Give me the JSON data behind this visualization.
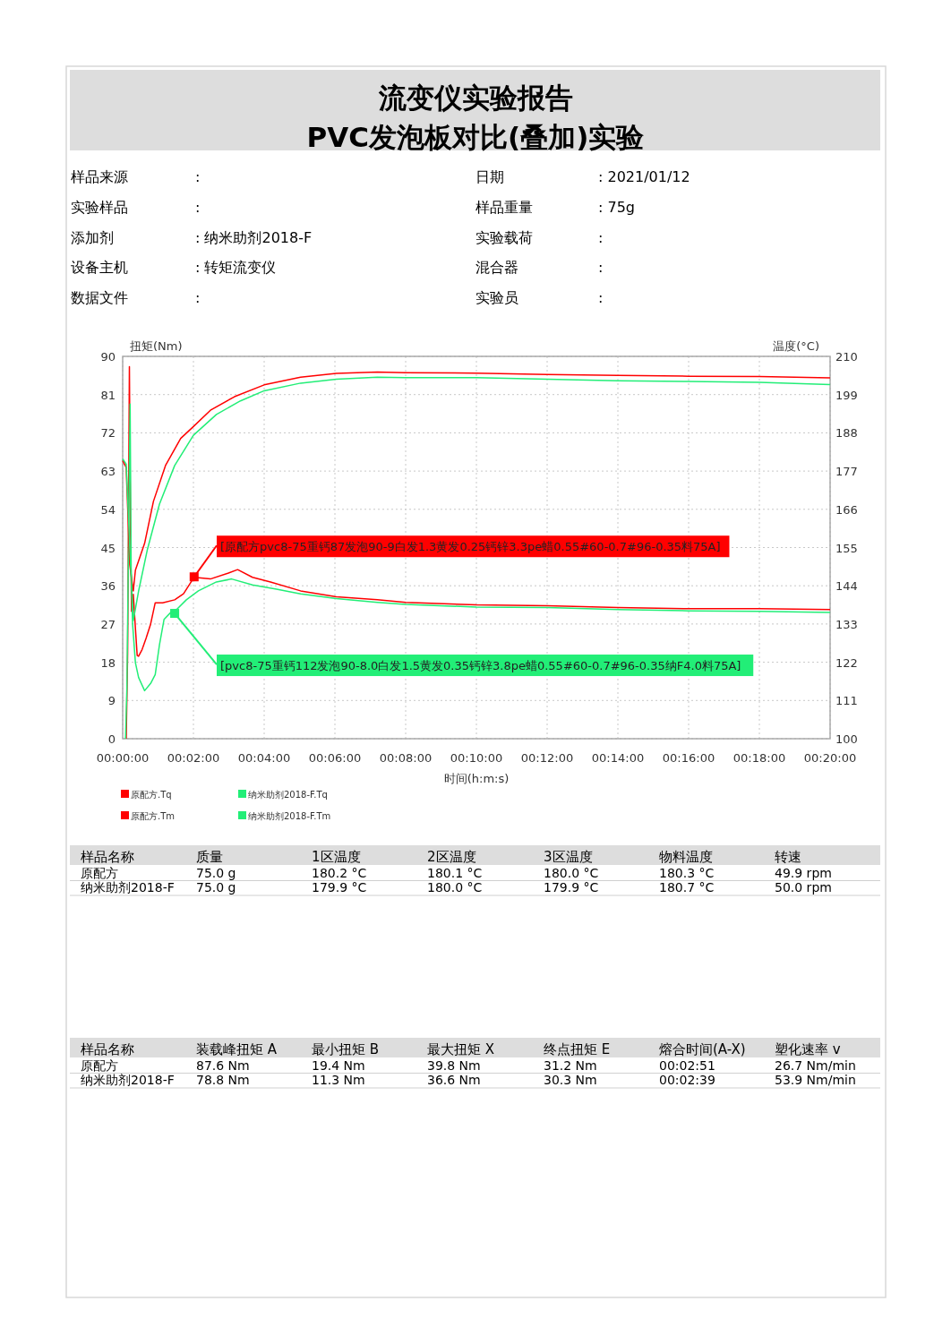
{
  "chart_data": [
    {
      "type": "other",
      "title": "流变仪实验报告",
      "subtitle": "PVC发泡板对比(叠加)实验",
      "annotations": [
        "样品来源",
        ":",
        "实验样品",
        ":",
        "添加剂",
        ": 纳米助剂2018-F",
        "设备主机",
        ": 转矩流变仪",
        "数据文件",
        ":",
        "日期",
        ": 2021/01/12",
        "样品重量",
        ": 75g",
        "实验载荷",
        ":",
        "混合器",
        ":",
        "实验员",
        ":"
      ]
    },
    {
      "type": "line",
      "xlabel": "时间(h:m:s)",
      "ylabel": "扭矩(Nm)",
      "y2label": "温度(°C)",
      "xlim": [
        0,
        20
      ],
      "xticks": [
        {
          "value": 0,
          "label": "00:00:00"
        },
        {
          "value": 2,
          "label": "00:02:00"
        },
        {
          "value": 4,
          "label": "00:04:00"
        },
        {
          "value": 6,
          "label": "00:06:00"
        },
        {
          "value": 8,
          "label": "00:08:00"
        },
        {
          "value": 10,
          "label": "00:10:00"
        },
        {
          "value": 12,
          "label": "00:12:00"
        },
        {
          "value": 14,
          "label": "00:14:00"
        },
        {
          "value": 16,
          "label": "00:16:00"
        },
        {
          "value": 18,
          "label": "00:18:00"
        },
        {
          "value": 20,
          "label": "00:20:00"
        }
      ],
      "ylim": [
        0,
        90
      ],
      "yticks": [
        0,
        9,
        18,
        27,
        36,
        45,
        54,
        63,
        72,
        81,
        90
      ],
      "y2lim": [
        100,
        210
      ],
      "y2ticks": [
        100,
        111,
        122,
        133,
        144,
        155,
        166,
        177,
        188,
        199,
        210
      ],
      "grid": true,
      "legend": "bottom",
      "marker": "none",
      "line_style": "solid",
      "series": [
        {
          "name": "原配方.Tq",
          "color": "#ff0000",
          "x": [
            0.1,
            0.14,
            0.17,
            0.19,
            0.22,
            0.25,
            0.3,
            0.36,
            0.41,
            0.45,
            0.55,
            0.66,
            0.79,
            0.92,
            1.13,
            1.47,
            1.72,
            2.02,
            2.48,
            2.99,
            3.25,
            3.67,
            4.18,
            5.03,
            6.04,
            7.2,
            8,
            10,
            12,
            14,
            16,
            18,
            20
          ],
          "values": [
            0,
            20,
            60,
            87.6,
            50,
            30,
            34,
            26,
            19.6,
            19.4,
            21,
            23.6,
            27,
            32,
            32,
            32.7,
            34.1,
            38,
            37.6,
            39,
            39.8,
            38,
            36.9,
            34.8,
            33.4,
            32.7,
            32.1,
            31.5,
            31.3,
            30.9,
            30.6,
            30.6,
            30.4
          ]
        },
        {
          "name": "纳米助剂2018-F.Tq",
          "color": "#22ee77",
          "x": [
            0.08,
            0.12,
            0.17,
            0.21,
            0.24,
            0.28,
            0.36,
            0.45,
            0.62,
            0.79,
            0.92,
            1.04,
            1.17,
            1.38,
            1.55,
            1.8,
            2.14,
            2.65,
            3.08,
            3.67,
            4.35,
            5.03,
            6.04,
            7.2,
            8,
            10,
            12,
            14,
            16,
            18,
            20
          ],
          "values": [
            0,
            12,
            50,
            78.8,
            40,
            27,
            17.9,
            14.4,
            11.3,
            13,
            15.1,
            22.1,
            28.1,
            29.9,
            30.6,
            32.7,
            34.8,
            36.9,
            37.6,
            36.2,
            35.2,
            34.1,
            33,
            32.1,
            31.6,
            31,
            30.9,
            30.4,
            30.1,
            30,
            29.7
          ]
        },
        {
          "name": "原配方.Tm",
          "color": "#ff0000",
          "axis": "y2",
          "x": [
            0,
            0.1,
            0.2,
            0.3,
            0.36,
            0.62,
            0.87,
            1.21,
            1.64,
            2,
            2.48,
            3.16,
            4,
            5.03,
            6.04,
            7.2,
            8,
            10,
            12,
            14,
            16,
            18,
            20
          ],
          "values": [
            180,
            178,
            150,
            142.5,
            148.5,
            156.2,
            168.3,
            178.6,
            186.4,
            189.8,
            194.5,
            198.4,
            201.8,
            204,
            205.1,
            205.5,
            205.3,
            205.2,
            204.8,
            204.5,
            204.3,
            204.2,
            203.8
          ]
        },
        {
          "name": "纳米助剂2018-F.Tm",
          "color": "#22ee77",
          "axis": "y2",
          "x": [
            0,
            0.1,
            0.2,
            0.3,
            0.45,
            0.7,
            1.04,
            1.47,
            2,
            2.65,
            3.33,
            4,
            5.03,
            6.04,
            7.2,
            8,
            10,
            12,
            14,
            16,
            18,
            20
          ],
          "values": [
            180.5,
            179,
            155,
            134,
            142.5,
            154.5,
            167.5,
            178.6,
            187.3,
            193.3,
            197.2,
            200.1,
            202.3,
            203.4,
            204,
            203.9,
            203.9,
            203.4,
            203,
            202.8,
            202.5,
            201.9
          ]
        }
      ],
      "annotations": [
        {
          "text": "[原配方pvc8-75重钙87发泡90-9白发1.3黄发0.25钙锌3.3pe蜡0.55#60-0.7#96-0.35料75A]",
          "x": 2.02,
          "y": 38.1
        },
        {
          "text": "[pvc8-75重钙112发泡90-8.0白发1.5黄发0.35钙锌3.8pe蜡0.55#60-0.7#96-0.35纳F4.0料75A]",
          "x": 1.47,
          "y": 29.5
        }
      ]
    },
    {
      "type": "other",
      "annotations": [
        "样品名称",
        "质量",
        "1区温度",
        "2区温度",
        "3区温度",
        "物料温度",
        "转速",
        "原配方",
        "75.0 g",
        "180.2 °C",
        "180.1 °C",
        "180.0 °C",
        "180.3 °C",
        "49.9 rpm",
        "纳米助剂2018-F",
        "75.0 g",
        "179.9 °C",
        "180.0 °C",
        "179.9 °C",
        "180.7 °C",
        "50.0 rpm"
      ]
    },
    {
      "type": "other",
      "annotations": [
        "样品名称",
        "装载峰扭矩 A",
        "最小扭矩 B",
        "最大扭矩 X",
        "终点扭矩 E",
        "熔合时间(A-X)",
        "塑化速率 v",
        "原配方",
        "87.6 Nm",
        "19.4 Nm",
        "39.8 Nm",
        "31.2 Nm",
        "00:02:51",
        "26.7 Nm/min",
        "纳米助剂2018-F",
        "78.8 Nm",
        "11.3 Nm",
        "36.6 Nm",
        "30.3 Nm",
        "00:02:39",
        "53.9 Nm/min"
      ]
    }
  ]
}
